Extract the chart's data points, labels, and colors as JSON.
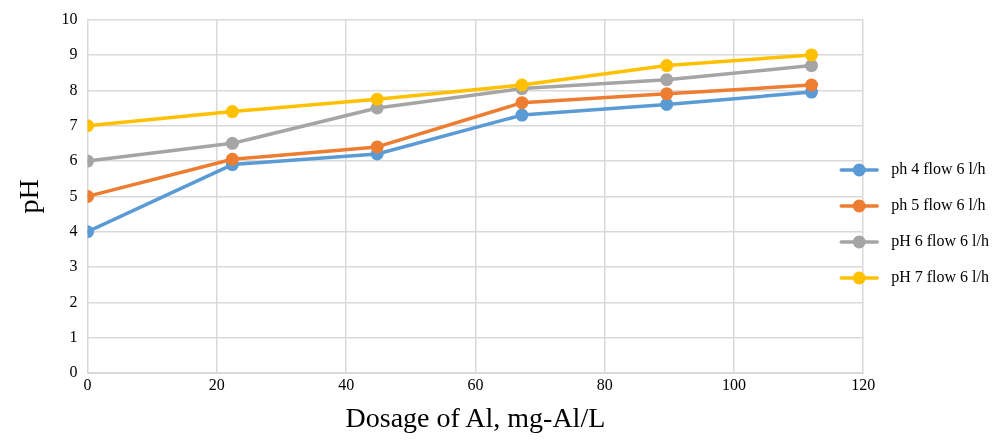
{
  "chart_data": {
    "type": "line",
    "xlabel": "Dosage of Al, mg-Al/L",
    "ylabel": "pH",
    "x": [
      0,
      22.4,
      44.8,
      67.2,
      89.6,
      112
    ],
    "series": [
      {
        "name": "ph 4 flow 6 l/h",
        "color": "#5b9bd5",
        "values": [
          4,
          5.9,
          6.2,
          7.3,
          7.6,
          7.95
        ]
      },
      {
        "name": "ph 5 flow 6 l/h",
        "color": "#ed7d31",
        "values": [
          5,
          6.05,
          6.4,
          7.65,
          7.9,
          8.15
        ]
      },
      {
        "name": "pH 6 flow 6 l/h",
        "color": "#a5a5a5",
        "values": [
          6,
          6.5,
          7.5,
          8.05,
          8.3,
          8.7
        ]
      },
      {
        "name": "pH 7 flow 6 l/h",
        "color": "#ffc000",
        "values": [
          7,
          7.4,
          7.75,
          8.15,
          8.7,
          9.0
        ]
      }
    ],
    "xlim": [
      0,
      120
    ],
    "xticks": [
      0,
      20,
      40,
      60,
      80,
      100,
      120
    ],
    "ylim": [
      0,
      10
    ],
    "yticks": [
      0,
      1,
      2,
      3,
      4,
      5,
      6,
      7,
      8,
      9,
      10
    ],
    "grid": true,
    "legend": "right",
    "marker": "circle",
    "line_style": "solid"
  }
}
